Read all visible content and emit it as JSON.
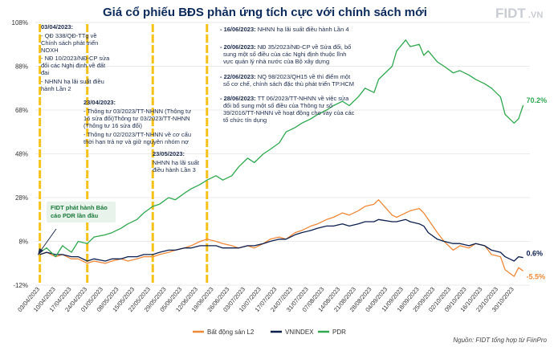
{
  "chart_data": {
    "type": "line",
    "title": "Giá cổ phiếu BĐS phản ứng tích cực với chính sách mới",
    "ylim": [
      -12,
      108
    ],
    "yticks": [
      "108%",
      "88%",
      "68%",
      "48%",
      "28%",
      "8%",
      "-12%"
    ],
    "ytick_values": [
      108,
      88,
      68,
      48,
      28,
      8,
      -12
    ],
    "xlim": [
      "2023-04-01",
      "2023-11-06"
    ],
    "xticks": [
      "03/04/2023",
      "10/04/2023",
      "17/04/2023",
      "24/04/2023",
      "01/05/2023",
      "08/05/2023",
      "15/05/2023",
      "22/05/2023",
      "29/05/2023",
      "05/06/2023",
      "12/06/2023",
      "19/06/2023",
      "26/06/2023",
      "03/07/2023",
      "10/07/2023",
      "17/07/2023",
      "24/07/2023",
      "31/07/2023",
      "07/08/2023",
      "14/08/2023",
      "21/08/2023",
      "28/08/2023",
      "04/09/2023",
      "11/09/2023",
      "18/09/2023",
      "25/09/2023",
      "02/10/2023",
      "09/10/2023",
      "16/10/2023",
      "23/10/2023",
      "30/10/2023"
    ],
    "series": [
      {
        "name": "Bất động sản L2",
        "color": "#f0883a",
        "points": [
          [
            "2023-04-03",
            2
          ],
          [
            "2023-04-06",
            3
          ],
          [
            "2023-04-10",
            1
          ],
          [
            "2023-04-13",
            2
          ],
          [
            "2023-04-17",
            0
          ],
          [
            "2023-04-20",
            0
          ],
          [
            "2023-04-24",
            -2
          ],
          [
            "2023-04-27",
            -1
          ],
          [
            "2023-05-02",
            -2
          ],
          [
            "2023-05-05",
            -1
          ],
          [
            "2023-05-09",
            0
          ],
          [
            "2023-05-12",
            -1
          ],
          [
            "2023-05-16",
            0
          ],
          [
            "2023-05-19",
            1
          ],
          [
            "2023-05-23",
            1
          ],
          [
            "2023-05-26",
            2
          ],
          [
            "2023-05-30",
            3
          ],
          [
            "2023-06-02",
            4
          ],
          [
            "2023-06-06",
            5
          ],
          [
            "2023-06-09",
            6
          ],
          [
            "2023-06-13",
            8
          ],
          [
            "2023-06-16",
            9
          ],
          [
            "2023-06-20",
            8
          ],
          [
            "2023-06-23",
            7
          ],
          [
            "2023-06-27",
            6
          ],
          [
            "2023-06-30",
            5
          ],
          [
            "2023-07-04",
            6
          ],
          [
            "2023-07-07",
            5
          ],
          [
            "2023-07-11",
            7
          ],
          [
            "2023-07-14",
            9
          ],
          [
            "2023-07-18",
            10
          ],
          [
            "2023-07-21",
            9
          ],
          [
            "2023-07-25",
            12
          ],
          [
            "2023-07-28",
            13
          ],
          [
            "2023-08-01",
            15
          ],
          [
            "2023-08-04",
            16
          ],
          [
            "2023-08-08",
            18
          ],
          [
            "2023-08-11",
            19
          ],
          [
            "2023-08-15",
            21
          ],
          [
            "2023-08-18",
            20
          ],
          [
            "2023-08-22",
            22
          ],
          [
            "2023-08-25",
            24
          ],
          [
            "2023-08-29",
            25
          ],
          [
            "2023-08-31",
            27
          ],
          [
            "2023-09-06",
            20
          ],
          [
            "2023-09-08",
            19
          ],
          [
            "2023-09-12",
            21
          ],
          [
            "2023-09-14",
            22
          ],
          [
            "2023-09-18",
            23
          ],
          [
            "2023-09-20",
            21
          ],
          [
            "2023-09-22",
            18
          ],
          [
            "2023-09-26",
            12
          ],
          [
            "2023-09-29",
            8
          ],
          [
            "2023-10-03",
            4
          ],
          [
            "2023-10-06",
            6
          ],
          [
            "2023-10-10",
            5
          ],
          [
            "2023-10-13",
            7
          ],
          [
            "2023-10-17",
            6
          ],
          [
            "2023-10-20",
            2
          ],
          [
            "2023-10-24",
            1
          ],
          [
            "2023-10-26",
            -5
          ],
          [
            "2023-10-30",
            -8
          ],
          [
            "2023-11-01",
            -4
          ],
          [
            "2023-11-03",
            -5.5
          ]
        ]
      },
      {
        "name": "VNINDEX",
        "color": "#0b1f4e",
        "points": [
          [
            "2023-04-03",
            2
          ],
          [
            "2023-04-06",
            3
          ],
          [
            "2023-04-10",
            2
          ],
          [
            "2023-04-13",
            2
          ],
          [
            "2023-04-17",
            1
          ],
          [
            "2023-04-20",
            1
          ],
          [
            "2023-04-24",
            -1
          ],
          [
            "2023-04-27",
            0
          ],
          [
            "2023-05-02",
            -1
          ],
          [
            "2023-05-05",
            0
          ],
          [
            "2023-05-09",
            0
          ],
          [
            "2023-05-12",
            1
          ],
          [
            "2023-05-16",
            1
          ],
          [
            "2023-05-19",
            2
          ],
          [
            "2023-05-23",
            2
          ],
          [
            "2023-05-26",
            3
          ],
          [
            "2023-05-30",
            4
          ],
          [
            "2023-06-02",
            4
          ],
          [
            "2023-06-06",
            5
          ],
          [
            "2023-06-09",
            5
          ],
          [
            "2023-06-13",
            6
          ],
          [
            "2023-06-16",
            6
          ],
          [
            "2023-06-20",
            6
          ],
          [
            "2023-06-23",
            5
          ],
          [
            "2023-06-27",
            5
          ],
          [
            "2023-06-30",
            5
          ],
          [
            "2023-07-04",
            6
          ],
          [
            "2023-07-07",
            6
          ],
          [
            "2023-07-11",
            7
          ],
          [
            "2023-07-14",
            8
          ],
          [
            "2023-07-18",
            9
          ],
          [
            "2023-07-21",
            9
          ],
          [
            "2023-07-25",
            11
          ],
          [
            "2023-07-28",
            12
          ],
          [
            "2023-08-01",
            13
          ],
          [
            "2023-08-04",
            14
          ],
          [
            "2023-08-08",
            15
          ],
          [
            "2023-08-11",
            15
          ],
          [
            "2023-08-15",
            16
          ],
          [
            "2023-08-18",
            15
          ],
          [
            "2023-08-22",
            16
          ],
          [
            "2023-08-25",
            17
          ],
          [
            "2023-08-29",
            17
          ],
          [
            "2023-08-31",
            18
          ],
          [
            "2023-09-06",
            17
          ],
          [
            "2023-09-08",
            17
          ],
          [
            "2023-09-12",
            18
          ],
          [
            "2023-09-14",
            17
          ],
          [
            "2023-09-18",
            16
          ],
          [
            "2023-09-20",
            15
          ],
          [
            "2023-09-22",
            12
          ],
          [
            "2023-09-26",
            9
          ],
          [
            "2023-09-29",
            8
          ],
          [
            "2023-10-03",
            7
          ],
          [
            "2023-10-06",
            7
          ],
          [
            "2023-10-10",
            6
          ],
          [
            "2023-10-13",
            7
          ],
          [
            "2023-10-17",
            6
          ],
          [
            "2023-10-20",
            4
          ],
          [
            "2023-10-24",
            3
          ],
          [
            "2023-10-26",
            1
          ],
          [
            "2023-10-30",
            -1
          ],
          [
            "2023-11-01",
            1
          ],
          [
            "2023-11-03",
            0.6
          ]
        ]
      },
      {
        "name": "PDR",
        "color": "#2fa84f",
        "points": [
          [
            "2023-04-03",
            3
          ],
          [
            "2023-04-06",
            5
          ],
          [
            "2023-04-10",
            1
          ],
          [
            "2023-04-13",
            6
          ],
          [
            "2023-04-17",
            3
          ],
          [
            "2023-04-20",
            8
          ],
          [
            "2023-04-24",
            7
          ],
          [
            "2023-04-27",
            10
          ],
          [
            "2023-05-02",
            11
          ],
          [
            "2023-05-05",
            12
          ],
          [
            "2023-05-09",
            14
          ],
          [
            "2023-05-12",
            16
          ],
          [
            "2023-05-16",
            18
          ],
          [
            "2023-05-19",
            21
          ],
          [
            "2023-05-23",
            24
          ],
          [
            "2023-05-26",
            25
          ],
          [
            "2023-05-30",
            28
          ],
          [
            "2023-06-02",
            27
          ],
          [
            "2023-06-06",
            30
          ],
          [
            "2023-06-09",
            32
          ],
          [
            "2023-06-13",
            34
          ],
          [
            "2023-06-16",
            36
          ],
          [
            "2023-06-20",
            38
          ],
          [
            "2023-06-23",
            36
          ],
          [
            "2023-06-27",
            38
          ],
          [
            "2023-06-30",
            42
          ],
          [
            "2023-07-04",
            46
          ],
          [
            "2023-07-07",
            44
          ],
          [
            "2023-07-11",
            48
          ],
          [
            "2023-07-14",
            50
          ],
          [
            "2023-07-18",
            53
          ],
          [
            "2023-07-21",
            58
          ],
          [
            "2023-07-25",
            60
          ],
          [
            "2023-07-28",
            62
          ],
          [
            "2023-08-01",
            64
          ],
          [
            "2023-08-04",
            66
          ],
          [
            "2023-08-08",
            68
          ],
          [
            "2023-08-11",
            70
          ],
          [
            "2023-08-15",
            72
          ],
          [
            "2023-08-18",
            70
          ],
          [
            "2023-08-22",
            74
          ],
          [
            "2023-08-25",
            78
          ],
          [
            "2023-08-29",
            76
          ],
          [
            "2023-08-31",
            82
          ],
          [
            "2023-09-06",
            88
          ],
          [
            "2023-09-08",
            95
          ],
          [
            "2023-09-12",
            100
          ],
          [
            "2023-09-14",
            97
          ],
          [
            "2023-09-18",
            98
          ],
          [
            "2023-09-20",
            93
          ],
          [
            "2023-09-22",
            95
          ],
          [
            "2023-09-26",
            90
          ],
          [
            "2023-09-29",
            88
          ],
          [
            "2023-10-03",
            85
          ],
          [
            "2023-10-06",
            86
          ],
          [
            "2023-10-10",
            84
          ],
          [
            "2023-10-13",
            82
          ],
          [
            "2023-10-17",
            80
          ],
          [
            "2023-10-20",
            78
          ],
          [
            "2023-10-24",
            74
          ],
          [
            "2023-10-26",
            66
          ],
          [
            "2023-10-30",
            62
          ],
          [
            "2023-11-01",
            64
          ],
          [
            "2023-11-03",
            70.2
          ]
        ]
      }
    ],
    "end_labels": [
      {
        "series": "PDR",
        "text": "70.2%"
      },
      {
        "series": "VNINDEX",
        "text": "0.6%"
      },
      {
        "series": "Bất động sản L2",
        "text": "-5.5%"
      }
    ],
    "events": [
      {
        "date": "2023-04-03",
        "color": "#f6c21a"
      },
      {
        "date": "2023-04-24",
        "color": "#f6c21a"
      },
      {
        "date": "2023-05-23",
        "color": "#f6c21a"
      },
      {
        "date": "2023-06-16",
        "color": "#f6c21a"
      }
    ],
    "legend": [
      "Bất động sản L2",
      "VNINDEX",
      "PDR"
    ],
    "legend_position": "bottom"
  },
  "brand": {
    "logo": "FIDT",
    "logo_suffix": ".VN"
  },
  "annotations": {
    "a1": {
      "title": "03/04/2023:",
      "lines": [
        "- QĐ 338/QĐ-TTg về",
        "Chính sách phát triển",
        "NOXH",
        "- NĐ 10/2023/NĐ-CP sửa",
        "đổi các Nghị định về đất",
        "đai",
        "- NHNN hạ lãi suất điều",
        "hành Lần 2"
      ]
    },
    "a2": {
      "title": "23/04/2023:",
      "lines": [
        "- Thông tư 03/2023/TT-NHNN (Thông tư",
        "16 sửa đổi)Thông tư 03/2023/TT-NHNN",
        "(Thông tư 16 sửa đổi)",
        "- Thông tư 02/2023/TT-NHNN về cơ cấu",
        "thời hạn trả nợ và giữ nguyên nhóm nợ"
      ]
    },
    "a3": {
      "title": "23/05/2023:",
      "lines": [
        "NHNN hạ lãi suất",
        "điều hành Lần 3"
      ]
    },
    "a4": [
      {
        "bold": "- 16/06/2023:",
        "lines": [
          " NHNN hạ lãi suất điều hành Lần 4"
        ]
      },
      {
        "bold": "- 20/06/2023:",
        "lines": [
          " NĐ 35/2023/NĐ-CP về Sửa đổi, bổ",
          "sung một số điều của các Nghị định thuộc lĩnh",
          "vực quản lý nhà nước của Bộ xây dựng"
        ]
      },
      {
        "bold": "- 22/06/2023:",
        "lines": [
          " NQ 98/2023/QH15 về thí điểm một",
          "số cơ chế, chính sách đặc thù phát triển TP.HCM"
        ]
      },
      {
        "bold": "- 28/06/2023:",
        "lines": [
          " TT 06/2023/TT-NHNN về việc sửa",
          "đổi bổ sung một số điều của Thông tư số",
          "39/2016/TT-NHNN về hoạt động cho vay của các",
          "tổ chức tín dụng"
        ]
      }
    ],
    "fidt": {
      "lines": [
        "FIDT phát hành Báo",
        "cáo PDR lần đầu"
      ]
    }
  },
  "source": "Nguồn: FIDT tổng hợp từ FiinPro"
}
